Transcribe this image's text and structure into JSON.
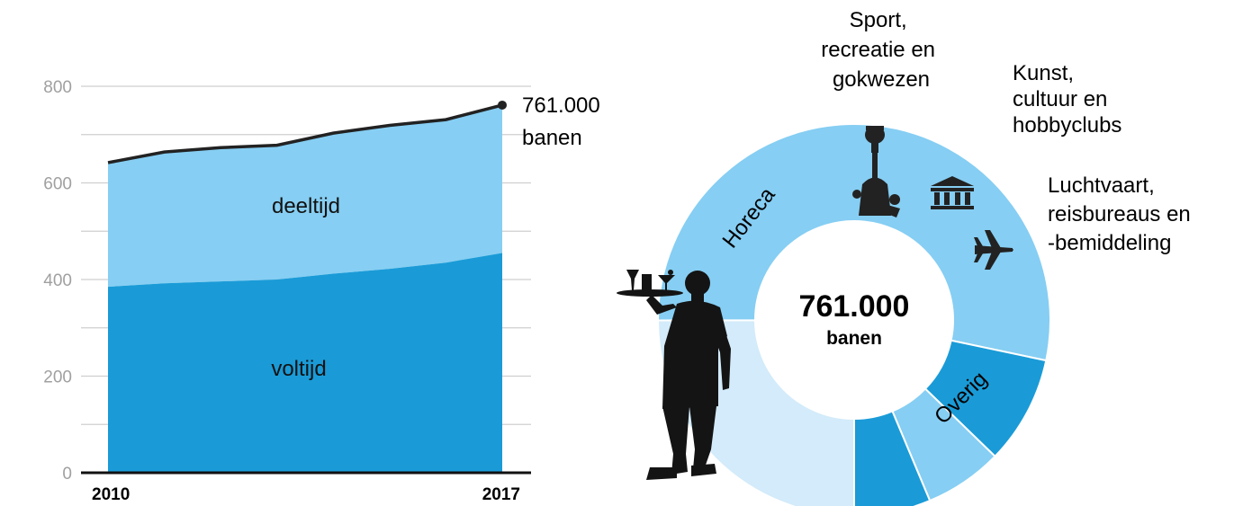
{
  "chart_data": [
    {
      "type": "area",
      "stacked": true,
      "x": [
        2010,
        2011,
        2012,
        2013,
        2014,
        2015,
        2016,
        2017
      ],
      "x_tick_labels": [
        "2010",
        "2017"
      ],
      "series": [
        {
          "name": "voltijd",
          "values": [
            385,
            392,
            396,
            400,
            412,
            422,
            435,
            455
          ],
          "color": "#1a9bd7"
        },
        {
          "name": "deeltijd",
          "values": [
            257,
            272,
            277,
            278,
            291,
            297,
            296,
            306
          ],
          "color": "#86cef3"
        }
      ],
      "totals": [
        642,
        664,
        673,
        678,
        703,
        719,
        731,
        761
      ],
      "total_line_color": "#222222",
      "ylim": [
        0,
        850
      ],
      "yticks": [
        0,
        200,
        400,
        600,
        800
      ],
      "grid": true,
      "end_annotation": {
        "line1": "761.000",
        "line2": "banen"
      }
    },
    {
      "type": "pie",
      "donut": true,
      "total": 761,
      "center_label": {
        "line1": "761.000",
        "line2": "banen"
      },
      "slices": [
        {
          "label": "Overig",
          "value": 190,
          "color": "#d3ebfa"
        },
        {
          "label": "Horeca",
          "value": 406,
          "color": "#86cef3"
        },
        {
          "label": "Sport, recreatie en gokwezen",
          "lines": [
            "Sport,",
            "recreatie en",
            "gokwezen"
          ],
          "value": 68,
          "color": "#1a9bd7"
        },
        {
          "label": "Kunst, cultuur en hobbyclubs",
          "lines": [
            "Kunst,",
            "cultuur en",
            "hobbyclubs"
          ],
          "value": 49,
          "color": "#86cef3"
        },
        {
          "label": "Luchtvaart, reisbureaus en -bemiddeling",
          "lines": [
            "Luchtvaart,",
            "reisbureaus en",
            "-bemiddeling"
          ],
          "value": 48,
          "color": "#1a9bd7"
        }
      ],
      "icons": [
        "waiter-silhouette-icon",
        "fountain-sculpture-icon",
        "museum-icon",
        "airplane-icon"
      ]
    }
  ]
}
